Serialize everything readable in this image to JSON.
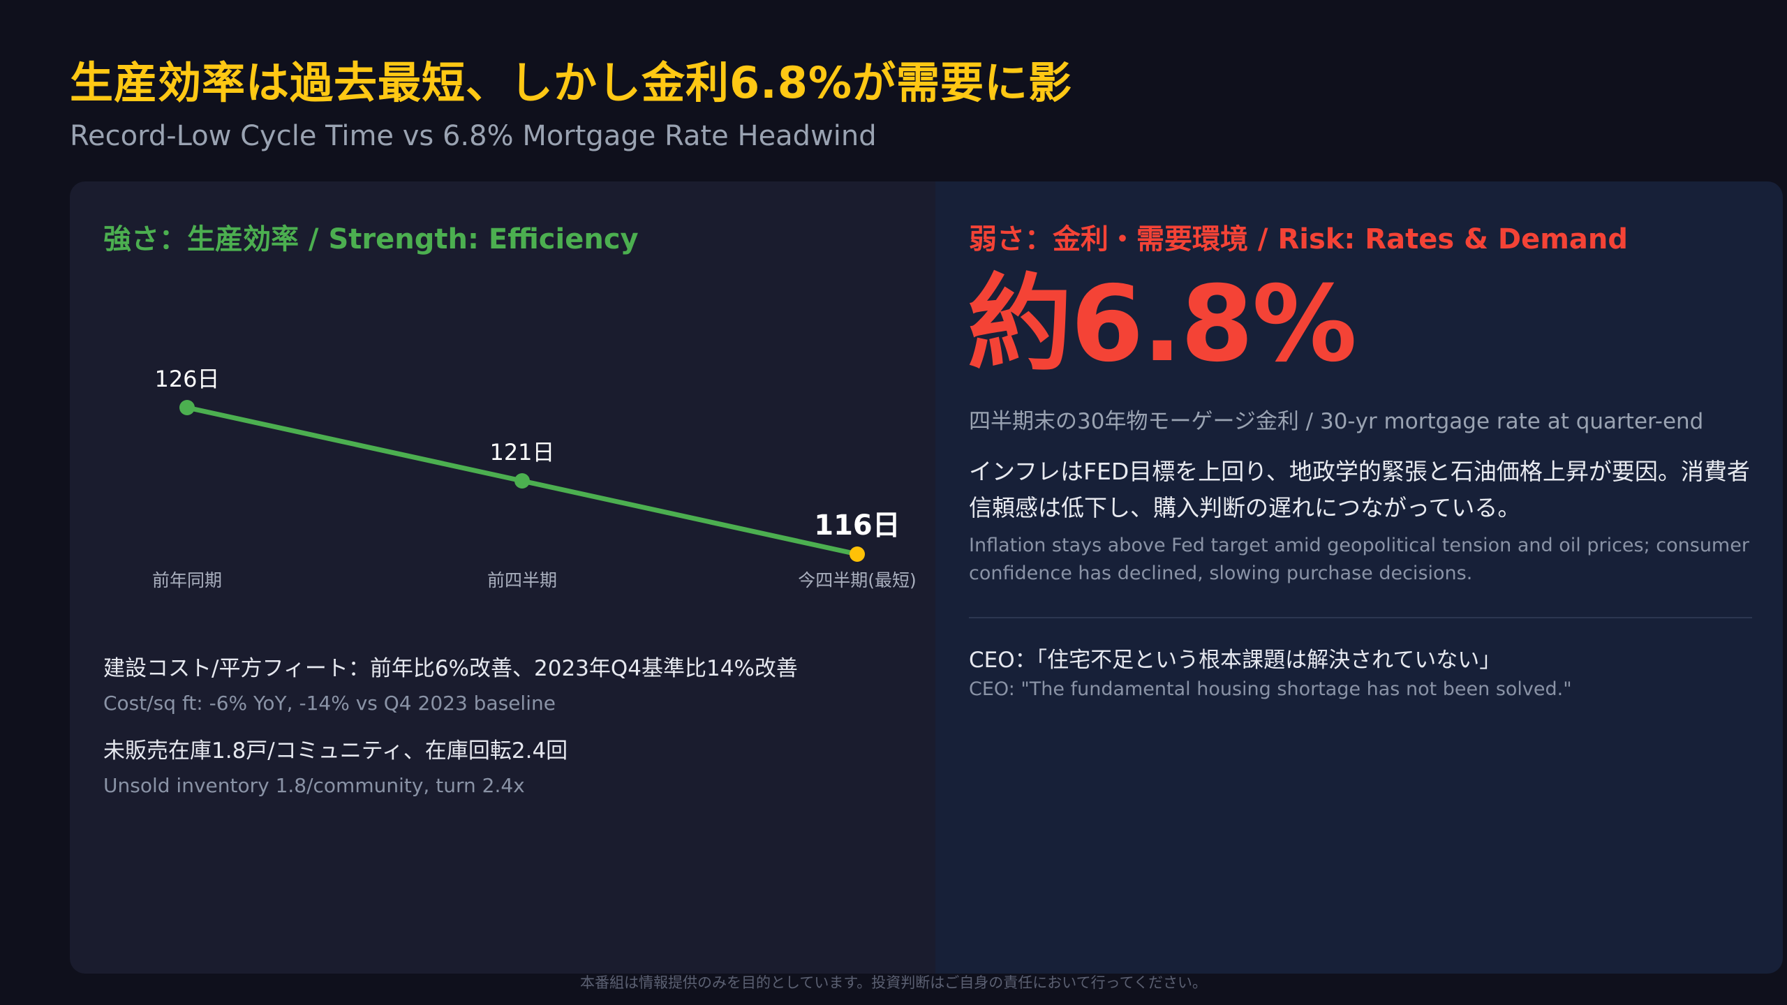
{
  "header": {
    "title": "生産効率は過去最短、しかし金利6.8%が需要に影",
    "subtitle": "Record-Low Cycle Time vs 6.8% Mortgage Rate Headwind"
  },
  "left_panel": {
    "heading": "強さ：生産効率 / Strength: Efficiency",
    "notes": [
      {
        "ja": "建設コスト/平方フィート：前年比6%改善、2023年Q4基準比14%改善",
        "en": "Cost/sq ft: -6% YoY, -14% vs Q4 2023 baseline"
      },
      {
        "ja": "未販売在庫1.8戸/コミュニティ、在庫回転2.4回",
        "en": "Unsold inventory 1.8/community, turn 2.4x"
      }
    ]
  },
  "chart_data": {
    "type": "line",
    "categories": [
      "前年同期",
      "前四半期",
      "今四半期(最短)"
    ],
    "values": [
      126,
      121,
      116
    ],
    "data_labels": [
      "126日",
      "121日",
      "116日"
    ],
    "ylim": [
      110,
      130
    ],
    "grid": false,
    "colors": {
      "line": "#4caf50",
      "point": "#4caf50",
      "highlight_point": "#ffc107"
    }
  },
  "right_panel": {
    "heading": "弱さ：金利・需要環境 / Risk: Rates & Demand",
    "big_value": "約6.8%",
    "big_caption": "四半期末の30年物モーゲージ金利 / 30-yr mortgage rate at quarter-end",
    "reason_ja": "インフレはFED目標を上回り、地政学的緊張と石油価格上昇が要因。消費者信頼感は低下し、購入判断の遅れにつながっている。",
    "reason_en": "Inflation stays above Fed target amid geopolitical tension and oil prices; consumer confidence has declined, slowing purchase decisions.",
    "ceo_ja": "CEO：「住宅不足という根本課題は解決されていない」",
    "ceo_en": "CEO: \"The fundamental housing shortage has not been solved.\""
  },
  "footer": {
    "disclaimer": "本番組は情報提供のみを目的としています。投資判断はご自身の責任において行ってください。"
  },
  "colors": {
    "background": "#0f101c",
    "title": "#ffc814",
    "strength": "#4caf50",
    "risk": "#f44336",
    "highlight": "#ffc107"
  }
}
